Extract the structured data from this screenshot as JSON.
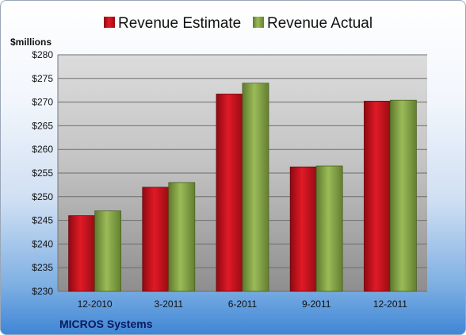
{
  "chart_data": {
    "type": "bar",
    "ylabel": "$millions",
    "company": "MICROS Systems",
    "categories": [
      "12-2010",
      "3-2011",
      "6-2011",
      "9-2011",
      "12-2011"
    ],
    "series": [
      {
        "name": "Revenue Estimate",
        "values": [
          246.0,
          252.0,
          271.7,
          256.3,
          270.2
        ]
      },
      {
        "name": "Revenue Actual",
        "values": [
          247.0,
          253.0,
          274.0,
          256.5,
          270.4
        ]
      }
    ],
    "ylim": [
      230,
      280
    ],
    "yticks": [
      230,
      235,
      240,
      245,
      250,
      255,
      260,
      265,
      270,
      275,
      280
    ],
    "ytick_labels": [
      "$230",
      "$235",
      "$240",
      "$245",
      "$250",
      "$255",
      "$260",
      "$265",
      "$270",
      "$275",
      "$280"
    ],
    "grid": true,
    "legend": "top-center",
    "colors": {
      "estimate": "#c8101c",
      "actual": "#86a34a"
    }
  }
}
